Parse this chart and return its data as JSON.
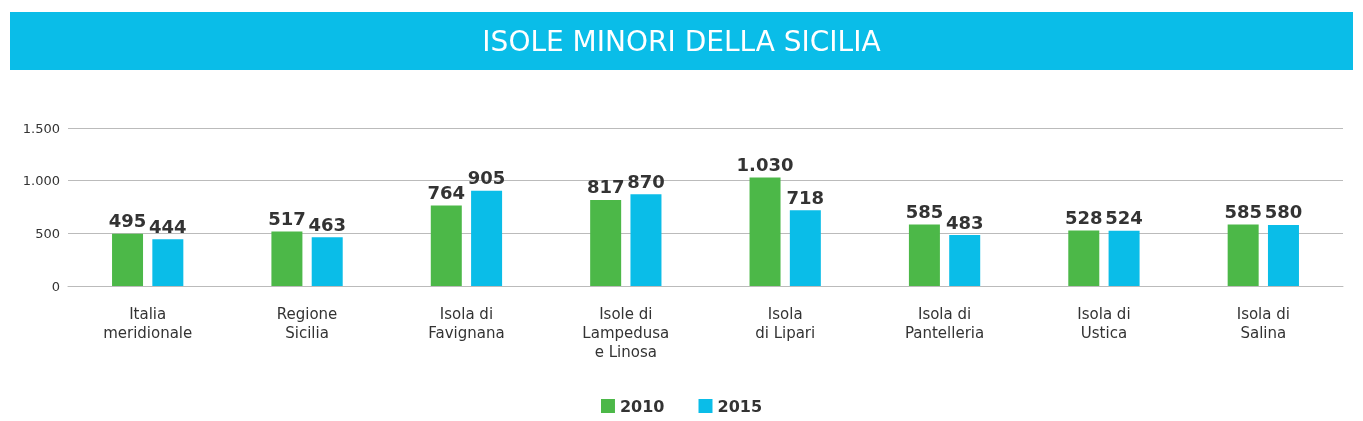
{
  "chart_data": {
    "type": "bar",
    "title": "ISOLE MINORI DELLA SICILIA",
    "categories": [
      "Italia\nmeridionale",
      "Regione\nSicilia",
      "Isola di\nFavignana",
      "Isole di\nLampedusa\ne Linosa",
      "Isola\ndi Lipari",
      "Isola di\nPantelleria",
      "Isola di\nUstica",
      "Isola di\nSalina"
    ],
    "series": [
      {
        "name": "2010",
        "color": "#4cb848",
        "values": [
          495,
          517,
          764,
          817,
          1030,
          585,
          528,
          585
        ],
        "value_labels": [
          "495",
          "517",
          "764",
          "817",
          "1.030",
          "585",
          "528",
          "585"
        ]
      },
      {
        "name": "2015",
        "color": "#0abde8",
        "values": [
          444,
          463,
          905,
          870,
          718,
          483,
          524,
          580
        ],
        "value_labels": [
          "444",
          "463",
          "905",
          "870",
          "718",
          "483",
          "524",
          "580"
        ]
      }
    ],
    "ylim": [
      0,
      1500
    ],
    "yticks": [
      0,
      500,
      {
        "value": 1000,
        "label": "1.000"
      },
      {
        "value": 1500,
        "label": "1.500"
      }
    ],
    "grid": "y",
    "legend": "bottom"
  }
}
